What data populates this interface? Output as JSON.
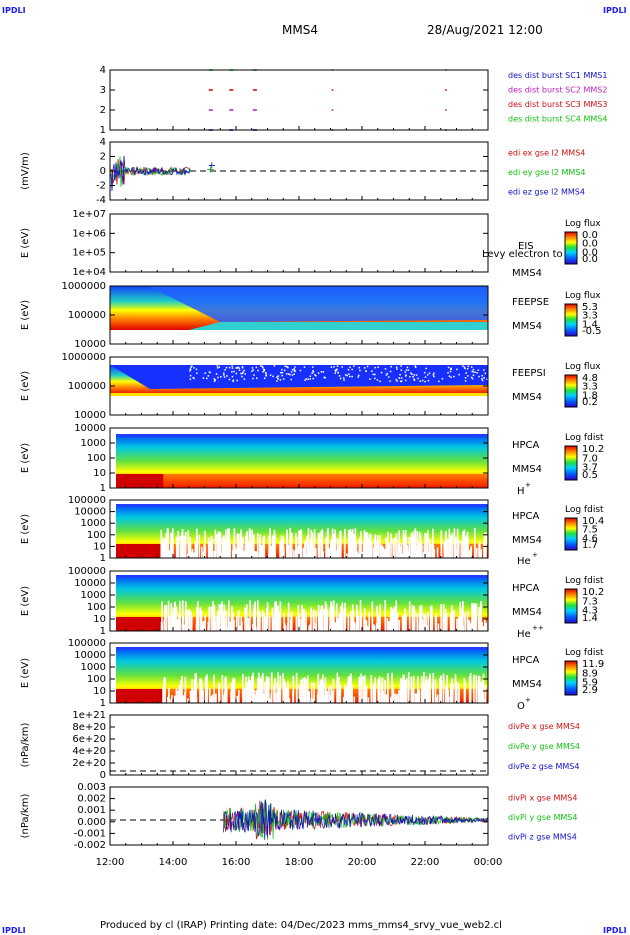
{
  "corner_label": "IPDLI",
  "header": {
    "spacecraft": "MMS4",
    "datetime": "28/Aug/2021 12:00"
  },
  "footer": "Produced by cl (IRAP)   Printing date: 04/Dec/2023   mms_mms4_srvy_vue_web2.cl",
  "x_ticks": [
    "12:00",
    "14:00",
    "16:00",
    "18:00",
    "20:00",
    "22:00",
    "00:00"
  ],
  "chart_data": [
    {
      "type": "scatter",
      "panel": "burst-availability",
      "ylim": [
        1,
        4
      ],
      "yticks": [
        "1",
        "2",
        "3",
        "4"
      ],
      "legend": [
        {
          "label": "des dist burst SC1 MMS1",
          "color": "#1010c8"
        },
        {
          "label": "des dist burst SC2 MMS2",
          "color": "#c020c0"
        },
        {
          "label": "des dist burst SC3 MMS3",
          "color": "#d01010"
        },
        {
          "label": "des dist burst SC4 MMS4",
          "color": "#10c010"
        }
      ],
      "burst_times_hours": [
        15.2,
        15.85,
        16.6,
        19.1,
        22.7
      ]
    },
    {
      "type": "line",
      "panel": "electric-field",
      "ylabel": "(mV/m)",
      "ylim": [
        -4,
        4
      ],
      "yticks": [
        "-4",
        "-2",
        "0",
        "2",
        "4"
      ],
      "legend": [
        {
          "label": "edi ex gse l2 MMS4",
          "color": "#d01010"
        },
        {
          "label": "edi ey gse l2 MMS4",
          "color": "#10c010"
        },
        {
          "label": "edi ez gse l2 MMS4",
          "color": "#1010c8"
        }
      ]
    },
    {
      "type": "heatmap",
      "panel": "EIS",
      "ylabel": "E (eV)",
      "yticks": [
        "1e+04",
        "1e+05",
        "1e+06",
        "1e+07"
      ],
      "labels": [
        "EIS",
        "MMS4"
      ],
      "overlay_text": "Levy electron to",
      "colorbar": {
        "title": "Log flux",
        "ticks": [
          "0.0",
          "0.0",
          "0.0",
          "0.0"
        ]
      }
    },
    {
      "type": "heatmap",
      "panel": "FEEPSE",
      "ylabel": "E (eV)",
      "yticks": [
        "10000",
        "100000",
        "1000000"
      ],
      "labels": [
        "FEEPSE",
        "MMS4"
      ],
      "colorbar": {
        "title": "Log flux",
        "ticks": [
          "5.3",
          "3.3",
          "1.4",
          "-0.5"
        ]
      }
    },
    {
      "type": "heatmap",
      "panel": "FEEPSI",
      "ylabel": "E (eV)",
      "yticks": [
        "10000",
        "100000",
        "1000000"
      ],
      "labels": [
        "FEEPSI",
        "MMS4"
      ],
      "colorbar": {
        "title": "Log flux",
        "ticks": [
          "4.8",
          "3.3",
          "1.8",
          "0.2"
        ]
      }
    },
    {
      "type": "heatmap",
      "panel": "HPCA-H",
      "ylabel": "E (eV)",
      "yticks": [
        "1",
        "10",
        "100",
        "1000",
        "10000"
      ],
      "labels": [
        "HPCA",
        "MMS4",
        "H",
        "+"
      ],
      "colorbar": {
        "title": "Log fdist",
        "ticks": [
          "10.2",
          "7.0",
          "3.7",
          "0.5"
        ]
      }
    },
    {
      "type": "heatmap",
      "panel": "HPCA-He",
      "ylabel": "E (eV)",
      "yticks": [
        "1",
        "10",
        "100",
        "1000",
        "10000",
        "100000"
      ],
      "labels": [
        "HPCA",
        "MMS4",
        "He",
        "+"
      ],
      "colorbar": {
        "title": "Log fdist",
        "ticks": [
          "10.4",
          "7.5",
          "4.6",
          "1.7"
        ]
      }
    },
    {
      "type": "heatmap",
      "panel": "HPCA-He2",
      "ylabel": "E (eV)",
      "yticks": [
        "1",
        "10",
        "100",
        "1000",
        "10000",
        "100000"
      ],
      "labels": [
        "HPCA",
        "MMS4",
        "He",
        "++"
      ],
      "colorbar": {
        "title": "Log fdist",
        "ticks": [
          "10.2",
          "7.3",
          "4.3",
          "1.4"
        ]
      }
    },
    {
      "type": "heatmap",
      "panel": "HPCA-O",
      "ylabel": "E (eV)",
      "yticks": [
        "1",
        "10",
        "100",
        "1000",
        "10000",
        "100000"
      ],
      "labels": [
        "HPCA",
        "MMS4",
        "O",
        "+"
      ],
      "colorbar": {
        "title": "Log fdist",
        "ticks": [
          "11.9",
          "8.9",
          "5.9",
          "2.9"
        ]
      }
    },
    {
      "type": "line",
      "panel": "divPe",
      "ylabel": "(nPa/km)",
      "yticks": [
        "0",
        "2e+20",
        "4e+20",
        "6e+20",
        "8e+20",
        "1e+21"
      ],
      "legend": [
        {
          "label": "divPe x gse MMS4",
          "color": "#d01010"
        },
        {
          "label": "divPe y gse MMS4",
          "color": "#10c010"
        },
        {
          "label": "divPe z gse MMS4",
          "color": "#1010c8"
        }
      ]
    },
    {
      "type": "line",
      "panel": "divPi",
      "ylabel": "(nPa/km)",
      "ylim": [
        -0.003,
        0.003
      ],
      "yticks": [
        "-0.002",
        "-0.001",
        "0.000",
        "0.001",
        "0.002",
        "0.003"
      ],
      "legend": [
        {
          "label": "divPi x gse MMS4",
          "color": "#d01010"
        },
        {
          "label": "divPi y gse MMS4",
          "color": "#10c010"
        },
        {
          "label": "divPi z gse MMS4",
          "color": "#1010c8"
        }
      ]
    }
  ]
}
